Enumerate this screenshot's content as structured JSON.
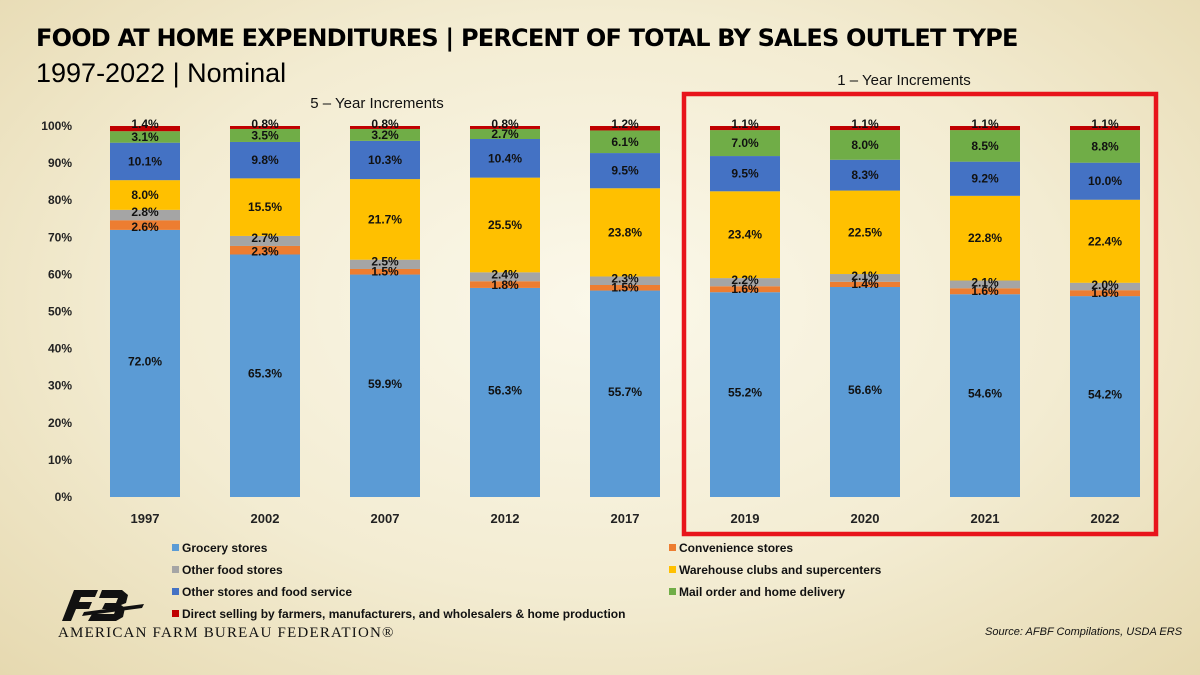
{
  "header": {
    "title": "FOOD AT HOME EXPENDITURES | PERCENT OF TOTAL BY SALES OUTLET TYPE",
    "subtitle": "1997-2022 | Nominal"
  },
  "annotations": {
    "five_year": "5 – Year Increments",
    "one_year": "1 – Year Increments",
    "highlight_color": "#e8141b"
  },
  "chart_data": {
    "type": "bar",
    "stacked": true,
    "categories": [
      "1997",
      "2002",
      "2007",
      "2012",
      "2017",
      "2019",
      "2020",
      "2021",
      "2022"
    ],
    "y_ticks": [
      "0%",
      "10%",
      "20%",
      "30%",
      "40%",
      "50%",
      "60%",
      "70%",
      "80%",
      "90%",
      "100%"
    ],
    "ylim": [
      0,
      100
    ],
    "grid": false,
    "legend_position": "bottom",
    "series": [
      {
        "name": "Grocery stores",
        "color": "#5b9bd5",
        "values": [
          72.0,
          65.3,
          59.9,
          56.3,
          55.7,
          55.2,
          56.6,
          54.6,
          54.2
        ],
        "labels": [
          "72.0%",
          "65.3%",
          "59.9%",
          "56.3%",
          "55.7%",
          "55.2%",
          "56.6%",
          "54.6%",
          "54.2%"
        ]
      },
      {
        "name": "Convenience stores",
        "color": "#ed7d31",
        "values": [
          2.6,
          2.3,
          1.5,
          1.8,
          1.5,
          1.6,
          1.4,
          1.6,
          1.6
        ],
        "labels": [
          "2.6%",
          "2.3%",
          "1.5%",
          "1.8%",
          "1.5%",
          "1.6%",
          "1.4%",
          "1.6%",
          "1.6%"
        ]
      },
      {
        "name": "Other food stores",
        "color": "#a5a5a5",
        "values": [
          2.8,
          2.7,
          2.5,
          2.4,
          2.3,
          2.2,
          2.1,
          2.1,
          2.0
        ],
        "labels": [
          "2.8%",
          "2.7%",
          "2.5%",
          "2.4%",
          "2.3%",
          "2.2%",
          "2.1%",
          "2.1%",
          "2.0%"
        ]
      },
      {
        "name": "Warehouse clubs and supercenters",
        "color": "#ffc000",
        "values": [
          8.0,
          15.5,
          21.7,
          25.5,
          23.8,
          23.4,
          22.5,
          22.8,
          22.4
        ],
        "labels": [
          "8.0%",
          "15.5%",
          "21.7%",
          "25.5%",
          "23.8%",
          "23.4%",
          "22.5%",
          "22.8%",
          "22.4%"
        ]
      },
      {
        "name": "Other stores and food service",
        "color": "#4472c4",
        "values": [
          10.1,
          9.8,
          10.3,
          10.4,
          9.5,
          9.5,
          8.3,
          9.2,
          10.0
        ],
        "labels": [
          "10.1%",
          "9.8%",
          "10.3%",
          "10.4%",
          "9.5%",
          "9.5%",
          "8.3%",
          "9.2%",
          "10.0%"
        ]
      },
      {
        "name": "Mail order and home delivery",
        "color": "#70ad47",
        "values": [
          3.1,
          3.5,
          3.2,
          2.7,
          6.1,
          7.0,
          8.0,
          8.5,
          8.8
        ],
        "labels": [
          "3.1%",
          "3.5%",
          "3.2%",
          "2.7%",
          "6.1%",
          "7.0%",
          "8.0%",
          "8.5%",
          "8.8%"
        ]
      },
      {
        "name": "Direct selling by farmers, manufacturers, and wholesalers & home production",
        "color": "#c00000",
        "values": [
          1.4,
          0.8,
          0.8,
          0.8,
          1.2,
          1.1,
          1.1,
          1.1,
          1.1
        ],
        "labels": [
          "1.4%",
          "0.8%",
          "0.8%",
          "0.8%",
          "1.2%",
          "1.1%",
          "1.1%",
          "1.1%",
          "1.1%"
        ]
      }
    ]
  },
  "footer": {
    "logo_icon": "afbf-logo-icon",
    "org_name": "AMERICAN FARM BUREAU FEDERATION®",
    "source": "Source: AFBF Compilations, USDA ERS"
  }
}
